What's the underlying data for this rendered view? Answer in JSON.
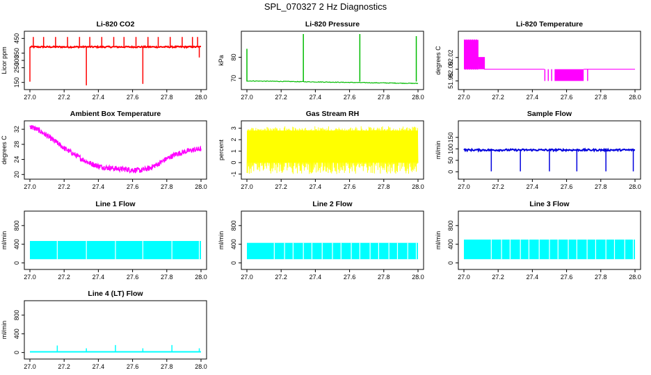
{
  "main_title": "SPL_070327  2 Hz Diagnostics",
  "chart_data": [
    {
      "type": "line",
      "title": "Li-820 CO2",
      "ylabel": "Licor ppm",
      "color": "#ff0000",
      "xlim": [
        27.0,
        28.0
      ],
      "ylim": [
        120,
        480
      ],
      "xticks": [
        27.0,
        27.2,
        27.4,
        27.6,
        27.8,
        28.0
      ],
      "xtick_labels": [
        "27.0",
        "27.2",
        "27.4",
        "27.6",
        "27.8",
        "28.0"
      ],
      "yticks": [
        150,
        250,
        300,
        350,
        450
      ],
      "ytick_labels": [
        "150",
        "250",
        "300",
        "350",
        "450"
      ],
      "baseline": 392,
      "spikes_up": [
        27.02,
        27.08,
        27.15,
        27.22,
        27.29,
        27.35,
        27.42,
        27.49,
        27.55,
        27.62,
        27.69,
        27.75,
        27.82,
        27.89,
        27.95,
        27.98
      ],
      "spike_up_value": 460,
      "spikes_down": [
        {
          "x": 27.0,
          "y": 155
        },
        {
          "x": 27.33,
          "y": 130
        },
        {
          "x": 27.66,
          "y": 140
        },
        {
          "x": 27.99,
          "y": 320
        }
      ],
      "style": "spikes"
    },
    {
      "type": "line",
      "title": "Li-820 Pressure",
      "ylabel": "kPa",
      "color": "#00bb00",
      "xlim": [
        27.0,
        28.0
      ],
      "ylim": [
        66,
        91
      ],
      "xticks": [
        27.0,
        27.2,
        27.4,
        27.6,
        27.8,
        28.0
      ],
      "xtick_labels": [
        "27.0",
        "27.2",
        "27.4",
        "27.6",
        "27.8",
        "28.0"
      ],
      "yticks": [
        70,
        80
      ],
      "ytick_labels": [
        "70",
        "80"
      ],
      "baseline_start": 68.8,
      "baseline_end": 67.6,
      "spikes_up": [
        {
          "x": 27.0,
          "y": 84
        },
        {
          "x": 27.33,
          "y": 91
        },
        {
          "x": 27.66,
          "y": 91
        },
        {
          "x": 27.99,
          "y": 90
        }
      ],
      "style": "pressure"
    },
    {
      "type": "line",
      "title": "Li-820 Temperature",
      "ylabel": "degrees C",
      "color": "#ff00ff",
      "xlim": [
        27.0,
        28.0
      ],
      "ylim": [
        51.97,
        52.06
      ],
      "xticks": [
        27.0,
        27.2,
        27.4,
        27.6,
        27.8,
        28.0
      ],
      "xtick_labels": [
        "27.0",
        "27.2",
        "27.4",
        "27.6",
        "27.8",
        "28.0"
      ],
      "yticks": [
        51.98,
        52.0,
        52.02
      ],
      "ytick_labels": [
        "51.98",
        "52.00",
        "52.02"
      ],
      "levels": [
        51.98,
        52.0,
        52.02,
        52.05
      ],
      "style": "steps"
    },
    {
      "type": "line",
      "title": "Ambient Box Temperature",
      "ylabel": "degrees C",
      "color": "#ff00ff",
      "xlim": [
        27.0,
        28.0
      ],
      "ylim": [
        19.5,
        33.5
      ],
      "xticks": [
        27.0,
        27.2,
        27.4,
        27.6,
        27.8,
        28.0
      ],
      "xtick_labels": [
        "27.0",
        "27.2",
        "27.4",
        "27.6",
        "27.8",
        "28.0"
      ],
      "yticks": [
        20,
        24,
        28,
        32
      ],
      "ytick_labels": [
        "20",
        "24",
        "28",
        "32"
      ],
      "curve_x": [
        27.0,
        27.05,
        27.1,
        27.15,
        27.2,
        27.25,
        27.3,
        27.35,
        27.4,
        27.45,
        27.5,
        27.55,
        27.6,
        27.65,
        27.7,
        27.75,
        27.8,
        27.85,
        27.9,
        27.95,
        28.0
      ],
      "curve_y": [
        32.8,
        31.8,
        30.3,
        28.7,
        27.0,
        25.6,
        24.2,
        23.0,
        22.2,
        21.8,
        21.6,
        21.4,
        21.2,
        21.1,
        21.7,
        22.8,
        24.2,
        25.3,
        26.0,
        26.5,
        26.8
      ],
      "noise": 0.9,
      "style": "noisy"
    },
    {
      "type": "line",
      "title": "Gas Stream RH",
      "ylabel": "percent",
      "color": "#ffff00",
      "xlim": [
        27.0,
        28.0
      ],
      "ylim": [
        -1.2,
        3.4
      ],
      "xticks": [
        27.0,
        27.2,
        27.4,
        27.6,
        27.8,
        28.0
      ],
      "xtick_labels": [
        "27.0",
        "27.2",
        "27.4",
        "27.6",
        "27.8",
        "28.0"
      ],
      "yticks": [
        -1,
        0,
        1,
        2,
        3
      ],
      "ytick_labels": [
        "-1",
        "0",
        "1",
        "2",
        "3"
      ],
      "band_low": 0.0,
      "band_high": 2.8,
      "band_min": -1.0,
      "band_max": 3.2,
      "style": "band"
    },
    {
      "type": "line",
      "title": "Sample Flow",
      "ylabel": "ml/min",
      "color": "#0000dd",
      "xlim": [
        27.0,
        28.0
      ],
      "ylim": [
        -20,
        210
      ],
      "xticks": [
        27.0,
        27.2,
        27.4,
        27.6,
        27.8,
        28.0
      ],
      "xtick_labels": [
        "27.0",
        "27.2",
        "27.4",
        "27.6",
        "27.8",
        "28.0"
      ],
      "yticks": [
        0,
        50,
        100,
        150
      ],
      "ytick_labels": [
        "0",
        "50",
        "100",
        "150"
      ],
      "baseline": 95,
      "noise": 8,
      "spikes_down": [
        27.16,
        27.33,
        27.5,
        27.66,
        27.83,
        27.99
      ],
      "spike_value": 2,
      "style": "flow"
    },
    {
      "type": "line",
      "title": "Line 1 Flow",
      "ylabel": "ml/min",
      "color": "#00ffff",
      "xlim": [
        27.0,
        28.0
      ],
      "ylim": [
        -80,
        1050
      ],
      "xticks": [
        27.0,
        27.2,
        27.4,
        27.6,
        27.8,
        28.0
      ],
      "xtick_labels": [
        "27.0",
        "27.2",
        "27.4",
        "27.6",
        "27.8",
        "28.0"
      ],
      "yticks": [
        0,
        400,
        800
      ],
      "ytick_labels": [
        "0",
        "400",
        "800"
      ],
      "band_low": 80,
      "band_high": 470,
      "gaps": [
        27.16,
        27.33,
        27.5,
        27.66,
        27.83,
        27.99
      ],
      "style": "band"
    },
    {
      "type": "line",
      "title": "Line 2 Flow",
      "ylabel": "ml/min",
      "color": "#00ffff",
      "xlim": [
        27.0,
        28.0
      ],
      "ylim": [
        -80,
        1050
      ],
      "xticks": [
        27.0,
        27.2,
        27.4,
        27.6,
        27.8,
        28.0
      ],
      "xtick_labels": [
        "27.0",
        "27.2",
        "27.4",
        "27.6",
        "27.8",
        "28.0"
      ],
      "yticks": [
        0,
        400,
        800
      ],
      "ytick_labels": [
        "0",
        "400",
        "800"
      ],
      "band_low": 80,
      "band_high": 430,
      "gaps": [
        27.16,
        27.22,
        27.27,
        27.33,
        27.38,
        27.44,
        27.5,
        27.55,
        27.61,
        27.66,
        27.72,
        27.77,
        27.83,
        27.88,
        27.94,
        27.99
      ],
      "style": "band"
    },
    {
      "type": "line",
      "title": "Line 3 Flow",
      "ylabel": "ml/min",
      "color": "#00ffff",
      "xlim": [
        27.0,
        28.0
      ],
      "ylim": [
        -80,
        1050
      ],
      "xticks": [
        27.0,
        27.2,
        27.4,
        27.6,
        27.8,
        28.0
      ],
      "xtick_labels": [
        "27.0",
        "27.2",
        "27.4",
        "27.6",
        "27.8",
        "28.0"
      ],
      "yticks": [
        0,
        400,
        800
      ],
      "ytick_labels": [
        "0",
        "400",
        "800"
      ],
      "band_low": 80,
      "band_high": 500,
      "gaps": [
        27.16,
        27.22,
        27.27,
        27.33,
        27.38,
        27.44,
        27.5,
        27.55,
        27.61,
        27.66,
        27.72,
        27.77,
        27.83,
        27.88,
        27.94,
        27.99
      ],
      "style": "band"
    },
    {
      "type": "line",
      "title": "Line 4 (LT) Flow",
      "ylabel": "ml/min",
      "color": "#00ffff",
      "xlim": [
        27.0,
        28.0
      ],
      "ylim": [
        -80,
        1050
      ],
      "xticks": [
        27.0,
        27.2,
        27.4,
        27.6,
        27.8,
        28.0
      ],
      "xtick_labels": [
        "27.0",
        "27.2",
        "27.4",
        "27.6",
        "27.8",
        "28.0"
      ],
      "yticks": [
        0,
        400,
        800
      ],
      "ytick_labels": [
        "0",
        "400",
        "800"
      ],
      "baseline": 15,
      "spikes_up": [
        {
          "x": 27.16,
          "y": 150
        },
        {
          "x": 27.33,
          "y": 90
        },
        {
          "x": 27.5,
          "y": 160
        },
        {
          "x": 27.66,
          "y": 90
        },
        {
          "x": 27.83,
          "y": 160
        },
        {
          "x": 27.99,
          "y": 90
        }
      ],
      "style": "lowline"
    }
  ]
}
